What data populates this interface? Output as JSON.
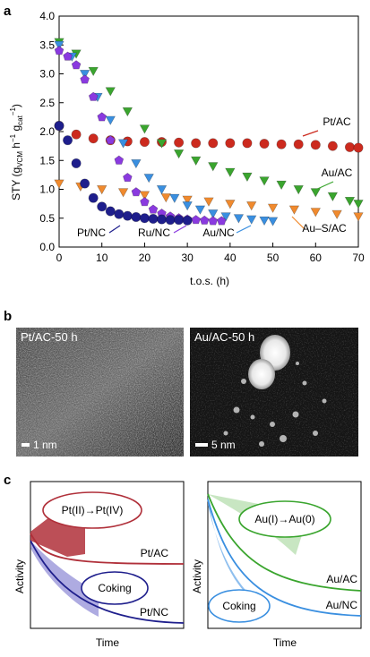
{
  "panels": {
    "a": "a",
    "b": "b",
    "c": "c"
  },
  "chart_data": {
    "type": "scatter",
    "ylabel_text": "STY (g",
    "ylabel_sub1": "VCM",
    "ylabel_mid": " h",
    "ylabel_sup1": "−1",
    "ylabel_mid2": " g",
    "ylabel_sub2": "cat",
    "ylabel_sup2": "−1",
    "ylabel_end": ")",
    "xlabel": "t.o.s. (h)",
    "xlim": [
      0,
      70
    ],
    "ylim": [
      0,
      4.0
    ],
    "xticks": [
      "0",
      "10",
      "20",
      "30",
      "40",
      "50",
      "60",
      "70"
    ],
    "yticks": [
      "0.0",
      "0.5",
      "1.0",
      "1.5",
      "2.0",
      "2.5",
      "3.0",
      "3.5",
      "4.0"
    ],
    "series": [
      {
        "name": "Pt/AC",
        "color": "#cc2a1e",
        "marker": "circle",
        "x": [
          0,
          4,
          8,
          12,
          16,
          20,
          24,
          28,
          32,
          36,
          40,
          44,
          48,
          52,
          56,
          60,
          64,
          68,
          70
        ],
        "y": [
          2.1,
          1.95,
          1.88,
          1.85,
          1.83,
          1.82,
          1.82,
          1.81,
          1.8,
          1.8,
          1.8,
          1.8,
          1.79,
          1.78,
          1.78,
          1.77,
          1.75,
          1.73,
          1.72
        ]
      },
      {
        "name": "Au/AC",
        "color": "#3aa52e",
        "marker": "triangle-down",
        "x": [
          0,
          4,
          8,
          12,
          16,
          20,
          24,
          28,
          32,
          36,
          40,
          44,
          48,
          52,
          56,
          60,
          64,
          68,
          70
        ],
        "y": [
          3.55,
          3.35,
          3.05,
          2.7,
          2.35,
          2.05,
          1.8,
          1.62,
          1.5,
          1.4,
          1.3,
          1.22,
          1.15,
          1.08,
          1.0,
          0.95,
          0.88,
          0.8,
          0.75
        ]
      },
      {
        "name": "Au–S/AC",
        "color": "#f08a2e",
        "marker": "triangle-down",
        "x": [
          0,
          5,
          10,
          15,
          20,
          25,
          30,
          35,
          40,
          45,
          50,
          55,
          60,
          65,
          70
        ],
        "y": [
          1.1,
          1.05,
          1.0,
          0.95,
          0.9,
          0.86,
          0.82,
          0.79,
          0.75,
          0.72,
          0.68,
          0.65,
          0.61,
          0.57,
          0.53
        ]
      },
      {
        "name": "Au/NC",
        "color": "#3a8fe0",
        "marker": "triangle-down",
        "x": [
          0,
          3,
          6,
          9,
          12,
          15,
          18,
          21,
          24,
          27,
          30,
          33,
          36,
          39,
          42,
          45,
          48,
          50
        ],
        "y": [
          3.5,
          3.3,
          3.0,
          2.6,
          2.2,
          1.8,
          1.45,
          1.2,
          1.0,
          0.85,
          0.72,
          0.65,
          0.58,
          0.53,
          0.5,
          0.48,
          0.46,
          0.45
        ]
      },
      {
        "name": "Ru/NC",
        "color": "#8a3adf",
        "marker": "pentagon",
        "x": [
          0,
          2,
          4,
          6,
          8,
          10,
          12,
          14,
          16,
          18,
          20,
          22,
          24,
          26,
          28,
          30,
          32,
          34,
          36,
          38
        ],
        "y": [
          3.4,
          3.3,
          3.15,
          2.9,
          2.6,
          2.25,
          1.85,
          1.5,
          1.2,
          0.95,
          0.78,
          0.65,
          0.58,
          0.53,
          0.5,
          0.48,
          0.47,
          0.46,
          0.45,
          0.45
        ]
      },
      {
        "name": "Pt/NC",
        "color": "#1e1e8c",
        "marker": "circle",
        "x": [
          0,
          2,
          4,
          6,
          8,
          10,
          12,
          14,
          16,
          18,
          20,
          22,
          24,
          26,
          28,
          30
        ],
        "y": [
          2.1,
          1.85,
          1.45,
          1.1,
          0.85,
          0.7,
          0.62,
          0.57,
          0.54,
          0.52,
          0.5,
          0.49,
          0.48,
          0.47,
          0.47,
          0.46
        ]
      }
    ]
  },
  "micrographs": {
    "left": {
      "caption": "Pt/AC-50 h",
      "scale": "1 nm"
    },
    "right": {
      "caption": "Au/AC-50 h",
      "scale": "5 nm"
    }
  },
  "schematic": {
    "left": {
      "ylabel": "Activity",
      "xlabel": "Time",
      "bubble1": "Pt(II)→Pt(IV)",
      "bubble2": "Coking",
      "line_top": "Pt/AC",
      "line_bottom": "Pt/NC"
    },
    "right": {
      "ylabel": "Activity",
      "xlabel": "Time",
      "bubble1": "Au(I)→Au(0)",
      "bubble2": "Coking",
      "line_top": "Au/AC",
      "line_bottom": "Au/NC"
    }
  }
}
